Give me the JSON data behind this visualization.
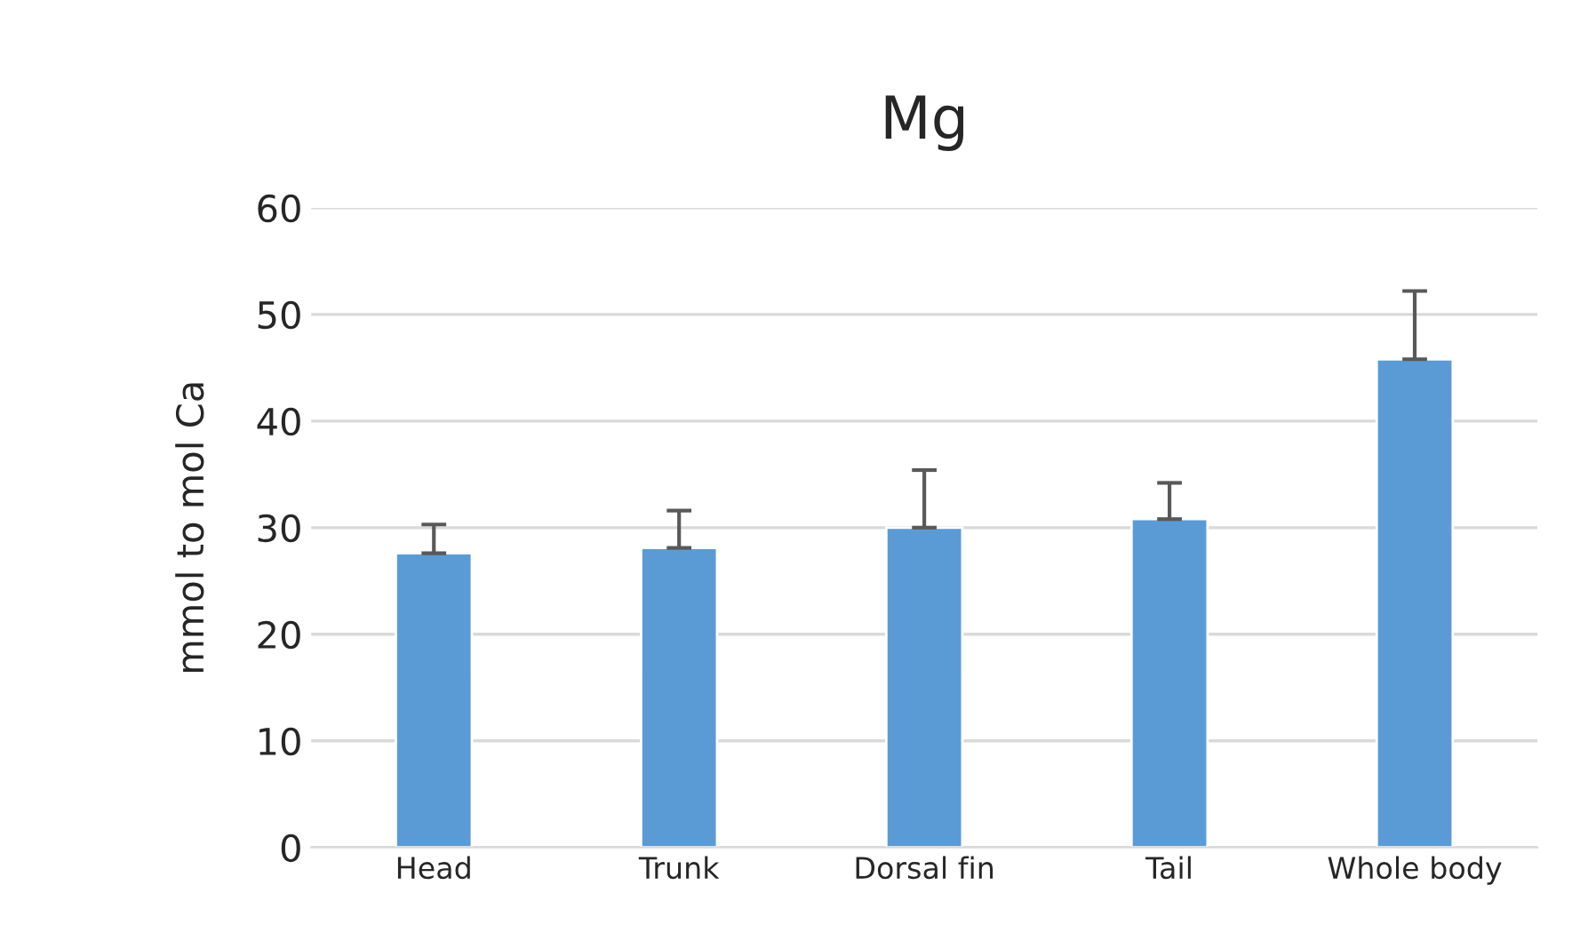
{
  "chart_data": {
    "type": "bar",
    "title": "Mg",
    "ylabel": "mmol to mol Ca",
    "categories": [
      "Head",
      "Trunk",
      "Dorsal fin",
      "Tail",
      "Whole body"
    ],
    "values": [
      27.6,
      28.1,
      30.0,
      30.8,
      45.8
    ],
    "errors": [
      [
        27.6,
        30.3
      ],
      [
        28.1,
        31.6
      ],
      [
        30.0,
        35.4
      ],
      [
        30.8,
        34.2
      ],
      [
        45.8,
        52.2
      ]
    ],
    "color": "#5b9bd5",
    "ylim": [
      0,
      60
    ],
    "yticks": [
      0,
      10,
      20,
      30,
      40,
      50,
      60
    ],
    "grid": "y"
  }
}
